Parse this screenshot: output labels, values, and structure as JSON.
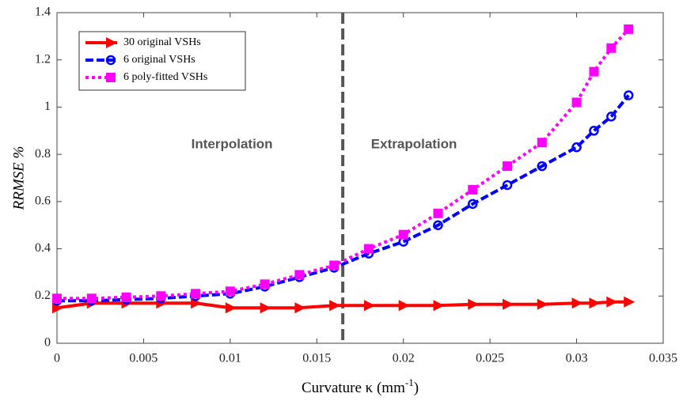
{
  "chart_data": {
    "type": "line",
    "xlabel": {
      "text": "Curvature κ (mm",
      "superscript": "-1",
      "suffix": ")"
    },
    "ylabel": "RRMSE %",
    "xlim": [
      0,
      0.035
    ],
    "xticks": [
      0,
      0.005,
      0.01,
      0.015,
      0.02,
      0.025,
      0.03,
      0.035
    ],
    "ylim": [
      0,
      1.4
    ],
    "yticks": [
      0,
      0.2,
      0.4,
      0.6,
      0.8,
      1,
      1.2,
      1.4
    ],
    "divider_x": 0.0165,
    "annotations": [
      "Interpolation",
      "Extrapolation"
    ],
    "legend": "upper left",
    "x": [
      0,
      0.002,
      0.004,
      0.006,
      0.008,
      0.01,
      0.012,
      0.014,
      0.016,
      0.018,
      0.02,
      0.022,
      0.024,
      0.026,
      0.028,
      0.03,
      0.031,
      0.032,
      0.033
    ],
    "series": [
      {
        "name": "30 original VSHs",
        "color": "#ff0000",
        "marker": "triangle",
        "values": [
          0.15,
          0.17,
          0.17,
          0.17,
          0.17,
          0.15,
          0.15,
          0.15,
          0.16,
          0.16,
          0.16,
          0.16,
          0.165,
          0.165,
          0.165,
          0.17,
          0.17,
          0.175,
          0.175
        ]
      },
      {
        "name": "6 original VSHs",
        "color": "#0000ff",
        "marker": "circle",
        "values": [
          0.18,
          0.18,
          0.185,
          0.19,
          0.2,
          0.21,
          0.24,
          0.28,
          0.32,
          0.38,
          0.43,
          0.5,
          0.59,
          0.67,
          0.75,
          0.83,
          0.9,
          0.96,
          1.05
        ]
      },
      {
        "name": "6 poly-fitted VSHs",
        "color": "#ff00ff",
        "marker": "square",
        "values": [
          0.19,
          0.19,
          0.195,
          0.2,
          0.21,
          0.22,
          0.25,
          0.29,
          0.33,
          0.4,
          0.46,
          0.55,
          0.65,
          0.75,
          0.85,
          1.02,
          1.15,
          1.25,
          1.33
        ]
      }
    ]
  }
}
